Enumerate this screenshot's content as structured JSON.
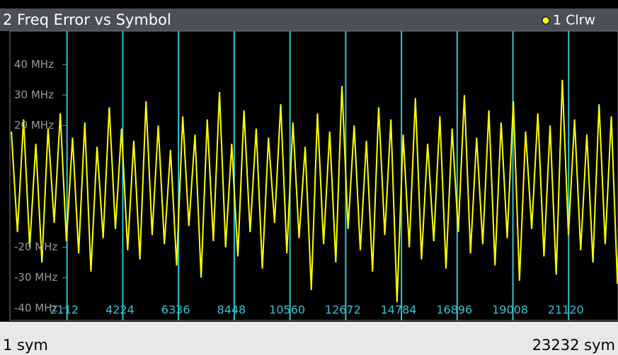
{
  "chart_data": {
    "type": "line",
    "title": "2 Freq Error vs Symbol",
    "x": [
      1,
      233,
      465,
      697,
      929,
      1161,
      1393,
      1625,
      1857,
      2089,
      2321,
      2553,
      2785,
      3017,
      3249,
      3481,
      3713,
      3945,
      4177,
      4409,
      4641,
      4873,
      5105,
      5337,
      5569,
      5801,
      6033,
      6265,
      6497,
      6729,
      6961,
      7193,
      7425,
      7657,
      7889,
      8121,
      8353,
      8585,
      8817,
      9049,
      9281,
      9513,
      9745,
      9977,
      10209,
      10441,
      10673,
      10905,
      11137,
      11369,
      11601,
      11833,
      12065,
      12297,
      12529,
      12761,
      12993,
      13225,
      13457,
      13689,
      13921,
      14153,
      14385,
      14617,
      14849,
      15081,
      15313,
      15545,
      15777,
      16009,
      16241,
      16473,
      16705,
      16937,
      17169,
      17401,
      17633,
      17865,
      18097,
      18329,
      18561,
      18793,
      19025,
      19257,
      19489,
      19721,
      19953,
      20185,
      20417,
      20649,
      20881,
      21113,
      21345,
      21577,
      21809,
      22041,
      22273,
      22505,
      22737,
      22969,
      23201
    ],
    "series": [
      {
        "name": "1 Clrw",
        "color": "#ffff00",
        "values": [
          18,
          -15,
          22,
          -20,
          14,
          -25,
          19,
          -12,
          24,
          -18,
          16,
          -22,
          21,
          -28,
          13,
          -17,
          26,
          -14,
          19,
          -21,
          15,
          -24,
          28,
          -16,
          20,
          -19,
          12,
          -26,
          23,
          -13,
          17,
          -30,
          22,
          -18,
          31,
          -20,
          14,
          -23,
          25,
          -15,
          19,
          -27,
          16,
          -12,
          27,
          -22,
          21,
          -17,
          13,
          -34,
          24,
          -19,
          18,
          -25,
          33,
          -14,
          20,
          -21,
          15,
          -28,
          26,
          -16,
          22,
          -38,
          17,
          -20,
          29,
          -24,
          14,
          -18,
          23,
          -27,
          19,
          -15,
          30,
          -22,
          16,
          -19,
          25,
          -26,
          21,
          -17,
          28,
          -31,
          18,
          -14,
          24,
          -23,
          20,
          -29,
          35,
          -16,
          22,
          -21,
          17,
          -25,
          27,
          -19,
          23,
          -32,
          26
        ]
      }
    ],
    "xlim": [
      1,
      23232
    ],
    "xlim_labels": [
      "1 sym",
      "23232 sym"
    ],
    "xticks": [
      2112,
      4224,
      6336,
      8448,
      10560,
      12672,
      14784,
      16896,
      19008,
      21120
    ],
    "ylim": [
      -44,
      51
    ],
    "yticks": [
      {
        "value": 40,
        "label": "40 MHz"
      },
      {
        "value": 30,
        "label": "30 MHz"
      },
      {
        "value": 20,
        "label": "20 MHz"
      },
      {
        "value": -20,
        "label": "-20 MHz"
      },
      {
        "value": -30,
        "label": "-30 MHz"
      },
      {
        "value": -40,
        "label": "-40 MHz"
      }
    ],
    "grid_color": "#33c3d0"
  }
}
